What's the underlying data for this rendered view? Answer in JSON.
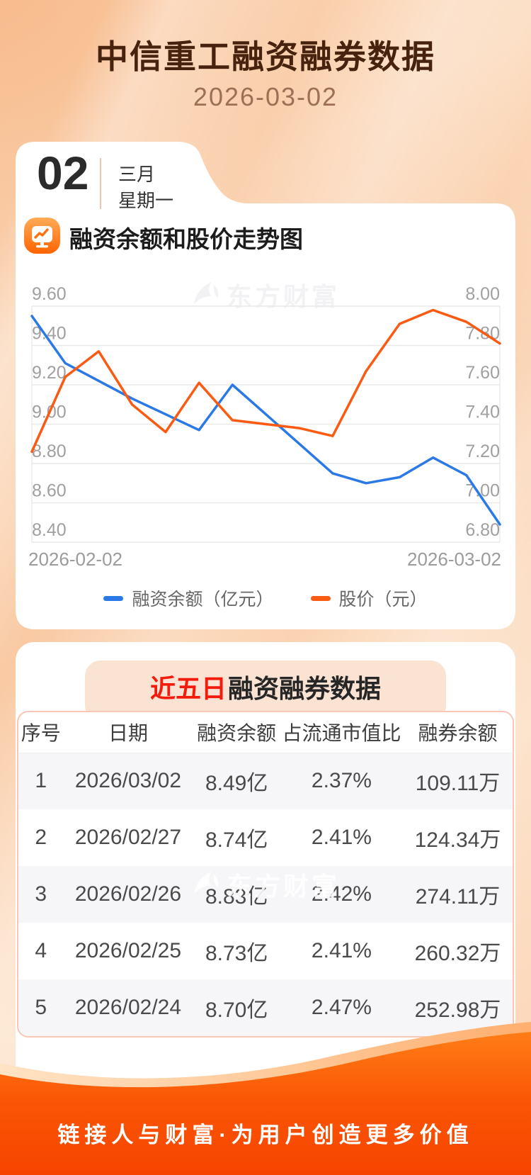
{
  "header": {
    "title": "中信重工融资融券数据",
    "date": "2026-03-02",
    "date_card": {
      "day": "02",
      "month": "三月",
      "weekday": "星期一"
    }
  },
  "watermark_brand": "东方财富",
  "chart_section": {
    "title": "融资余额和股价走势图"
  },
  "chart_data": {
    "type": "line",
    "title": "融资余额和股价走势图",
    "x_labels_shown": [
      "2026-02-02",
      "2026-03-02"
    ],
    "grid": true,
    "legend_position": "bottom",
    "left_axis": {
      "label": "融资余额（亿元）",
      "min": 8.4,
      "max": 9.6,
      "ticks": [
        "9.60",
        "9.40",
        "9.20",
        "9.00",
        "8.80",
        "8.60",
        "8.40"
      ]
    },
    "right_axis": {
      "label": "股价（元）",
      "min": 6.8,
      "max": 8.0,
      "ticks": [
        "8.00",
        "7.80",
        "7.60",
        "7.40",
        "7.20",
        "7.00",
        "6.80"
      ]
    },
    "series": [
      {
        "name": "融资余额（亿元）",
        "axis": "left",
        "color": "#2b79e6",
        "values": [
          9.55,
          9.31,
          9.22,
          9.13,
          9.05,
          8.97,
          9.2,
          9.05,
          8.9,
          8.75,
          8.7,
          8.73,
          8.83,
          8.74,
          8.49
        ]
      },
      {
        "name": "股价（元）",
        "axis": "right",
        "color": "#fa5a12",
        "values": [
          7.26,
          7.64,
          7.77,
          7.5,
          7.36,
          7.61,
          7.42,
          7.4,
          7.38,
          7.34,
          7.67,
          7.91,
          7.98,
          7.92,
          7.81
        ]
      }
    ]
  },
  "table_section": {
    "title_highlight": "近五日",
    "title_rest": "融资融券数据",
    "columns": [
      "序号",
      "日期",
      "融资余额",
      "占流通市值比",
      "融券余额"
    ],
    "rows": [
      [
        "1",
        "2026/03/02",
        "8.49亿",
        "2.37%",
        "109.11万"
      ],
      [
        "2",
        "2026/02/27",
        "8.74亿",
        "2.41%",
        "124.34万"
      ],
      [
        "3",
        "2026/02/26",
        "8.83亿",
        "2.42%",
        "274.11万"
      ],
      [
        "4",
        "2026/02/25",
        "8.73亿",
        "2.41%",
        "260.32万"
      ],
      [
        "5",
        "2026/02/24",
        "8.70亿",
        "2.47%",
        "252.98万"
      ]
    ]
  },
  "footer": {
    "slogan": "链接人与财富·为用户创造更多价值"
  },
  "colors": {
    "title_brown": "#47220e",
    "subtitle_brown": "#9d6f55",
    "accent_red": "#f31b0c",
    "line_blue": "#2b79e6",
    "line_orange": "#fa5a12",
    "grid_gray": "#e9e9e9",
    "tick_gray": "#a0a0a0",
    "footer_orange_top": "#ff7d17",
    "footer_orange_bottom": "#f64400",
    "banner_bg": "#fbe3d3",
    "row_alt_bg": "#f6f6f8",
    "table_border": "#f8c7b6"
  }
}
